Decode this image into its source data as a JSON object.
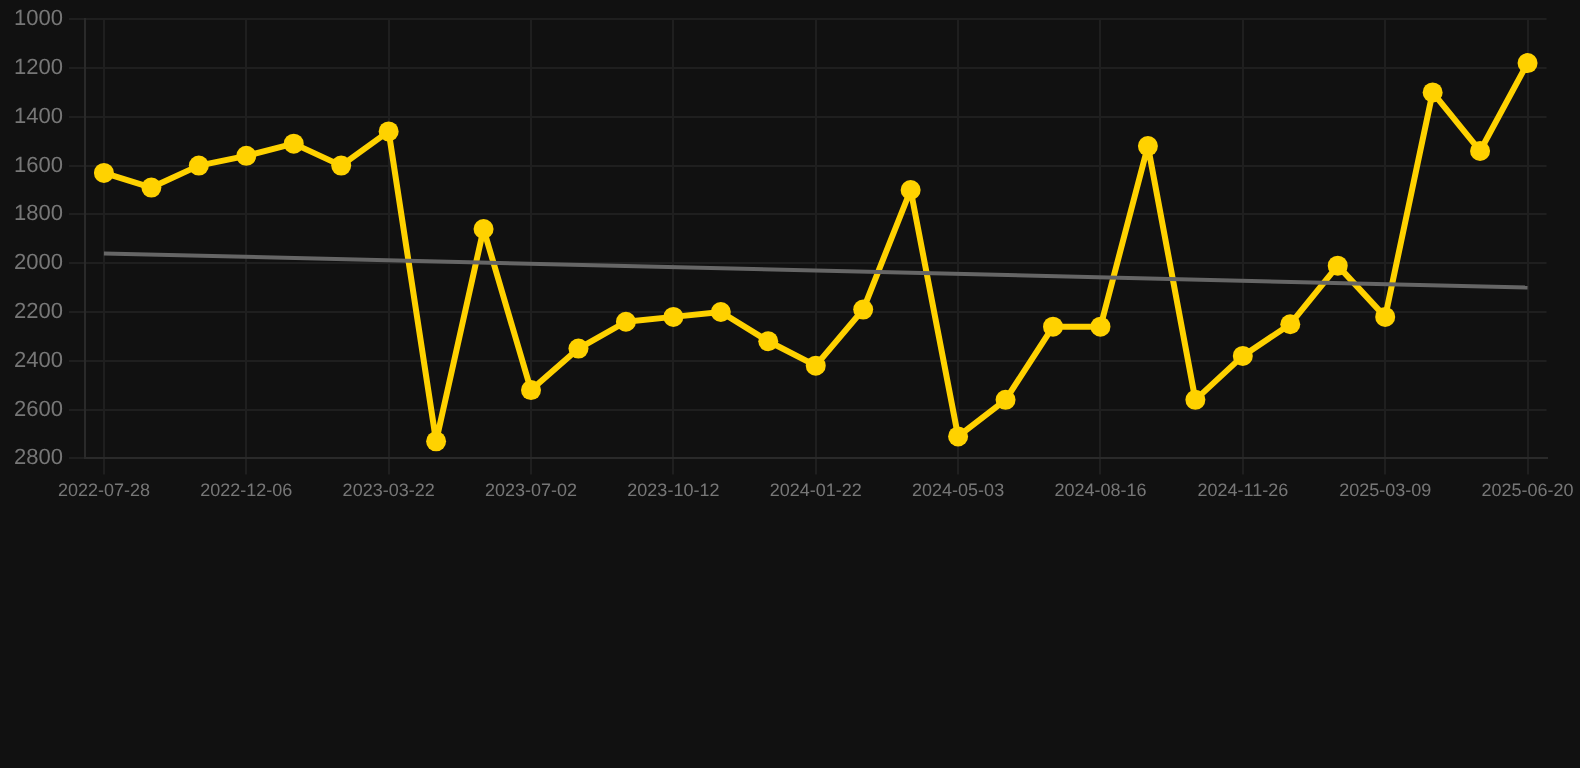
{
  "chart_data": {
    "type": "line",
    "categories": [
      "2022-07-28",
      null,
      null,
      "2022-12-06",
      null,
      null,
      "2023-03-22",
      null,
      null,
      "2023-07-02",
      null,
      null,
      "2023-10-12",
      null,
      null,
      "2024-01-22",
      null,
      null,
      "2024-05-03",
      null,
      null,
      "2024-08-16",
      null,
      null,
      "2024-11-26",
      null,
      null,
      "2025-03-09",
      null,
      null,
      "2025-06-20"
    ],
    "series": [
      {
        "color": "#ffd200",
        "marker": "circle",
        "values": [
          1630,
          1690,
          1600,
          1560,
          1510,
          1600,
          1460,
          2730,
          1860,
          2520,
          2350,
          2240,
          2220,
          2200,
          2320,
          2420,
          2190,
          1700,
          2710,
          2560,
          2260,
          2260,
          1520,
          2560,
          2380,
          2250,
          2010,
          2220,
          1300,
          1540,
          1180
        ]
      },
      {
        "type": "line",
        "color": "#666666",
        "marker": "none",
        "values": [
          1960,
          null,
          null,
          null,
          null,
          null,
          null,
          null,
          null,
          null,
          null,
          null,
          null,
          null,
          null,
          null,
          null,
          null,
          null,
          null,
          null,
          null,
          null,
          null,
          null,
          null,
          null,
          null,
          null,
          null,
          2100
        ]
      }
    ],
    "ylim": [
      2800,
      1000
    ],
    "yticks": [
      1000,
      1200,
      1400,
      1600,
      1800,
      2000,
      2200,
      2400,
      2600,
      2800
    ],
    "grid": true
  }
}
